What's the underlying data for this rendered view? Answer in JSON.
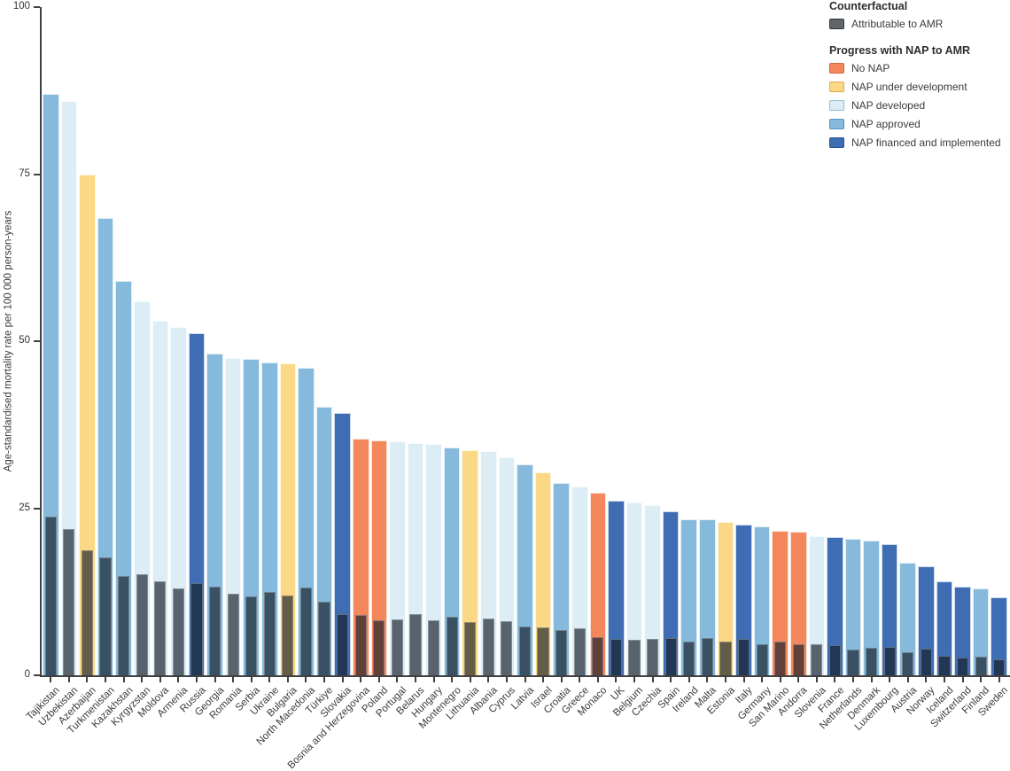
{
  "legend": {
    "counterfactual_title": "Counterfactual",
    "attributable_label": "Attributable to AMR",
    "nap_title": "Progress with NAP to AMR",
    "items": [
      {
        "key": "no_nap",
        "label": "No NAP"
      },
      {
        "key": "under_development",
        "label": "NAP under development"
      },
      {
        "key": "developed",
        "label": "NAP developed"
      },
      {
        "key": "approved",
        "label": "NAP approved"
      },
      {
        "key": "financed",
        "label": "NAP financed and implemented"
      }
    ]
  },
  "colors": {
    "no_nap": "#F4875C",
    "under_development": "#FBD885",
    "developed": "#DCEDF5",
    "approved": "#85BADC",
    "financed": "#3E6DB3",
    "attributable_overlay": "rgba(20,28,38,0.66)",
    "attributable_swatch": "#60656A",
    "swatch_borders": {
      "no_nap": "#D26744",
      "under_development": "#DCAB4E",
      "developed": "#8FBCD1",
      "approved": "#5A92BD",
      "financed": "#2A4F8C",
      "attributable": "#33383D"
    },
    "axis": "#404040",
    "text": "#3B3B3B"
  },
  "chart_data": {
    "type": "bar",
    "title": "",
    "xlabel": "",
    "ylabel": "Age-standardised mortality rate per 100 000 person-years",
    "ylim": [
      0,
      100
    ],
    "yticks": [
      0,
      25,
      50,
      75,
      100
    ],
    "grid": false,
    "legend_position": "top-right",
    "series_meaning": "counterfactual = full colored bar (colored by NAP progress); attributable = dark overlay bar (Attributable to AMR)",
    "countries": [
      {
        "name": "Tajikistan",
        "nap": "approved",
        "counterfactual": 87.0,
        "attributable": 23.7
      },
      {
        "name": "Uzbekistan",
        "nap": "developed",
        "counterfactual": 86.0,
        "attributable": 21.9
      },
      {
        "name": "Azerbaijan",
        "nap": "under_development",
        "counterfactual": 75.0,
        "attributable": 18.7
      },
      {
        "name": "Turkmenistan",
        "nap": "approved",
        "counterfactual": 68.5,
        "attributable": 17.6
      },
      {
        "name": "Kazakhstan",
        "nap": "approved",
        "counterfactual": 59.0,
        "attributable": 14.9
      },
      {
        "name": "Kyrgyzstan",
        "nap": "developed",
        "counterfactual": 56.0,
        "attributable": 15.1
      },
      {
        "name": "Moldova",
        "nap": "developed",
        "counterfactual": 53.0,
        "attributable": 14.1
      },
      {
        "name": "Armenia",
        "nap": "developed",
        "counterfactual": 52.1,
        "attributable": 13.0
      },
      {
        "name": "Russia",
        "nap": "financed",
        "counterfactual": 51.2,
        "attributable": 13.8
      },
      {
        "name": "Georgia",
        "nap": "approved",
        "counterfactual": 48.2,
        "attributable": 13.2
      },
      {
        "name": "Romania",
        "nap": "developed",
        "counterfactual": 47.5,
        "attributable": 12.2
      },
      {
        "name": "Serbia",
        "nap": "approved",
        "counterfactual": 47.3,
        "attributable": 11.8
      },
      {
        "name": "Ukraine",
        "nap": "approved",
        "counterfactual": 46.8,
        "attributable": 12.5
      },
      {
        "name": "Bulgaria",
        "nap": "under_development",
        "counterfactual": 46.7,
        "attributable": 12.0
      },
      {
        "name": "North Macedonia",
        "nap": "approved",
        "counterfactual": 46.0,
        "attributable": 13.1
      },
      {
        "name": "Türkiye",
        "nap": "approved",
        "counterfactual": 40.2,
        "attributable": 11.0
      },
      {
        "name": "Slovakia",
        "nap": "financed",
        "counterfactual": 39.2,
        "attributable": 9.2
      },
      {
        "name": "Bosnia and Herzegovina",
        "nap": "no_nap",
        "counterfactual": 35.4,
        "attributable": 9.0
      },
      {
        "name": "Poland",
        "nap": "no_nap",
        "counterfactual": 35.1,
        "attributable": 8.2
      },
      {
        "name": "Portugal",
        "nap": "developed",
        "counterfactual": 35.0,
        "attributable": 8.3
      },
      {
        "name": "Belarus",
        "nap": "developed",
        "counterfactual": 34.8,
        "attributable": 9.2
      },
      {
        "name": "Hungary",
        "nap": "developed",
        "counterfactual": 34.6,
        "attributable": 8.2
      },
      {
        "name": "Montenegro",
        "nap": "approved",
        "counterfactual": 34.1,
        "attributable": 8.8
      },
      {
        "name": "Lithuania",
        "nap": "under_development",
        "counterfactual": 33.7,
        "attributable": 7.9
      },
      {
        "name": "Albania",
        "nap": "developed",
        "counterfactual": 33.5,
        "attributable": 8.5
      },
      {
        "name": "Cyprus",
        "nap": "developed",
        "counterfactual": 32.6,
        "attributable": 8.1
      },
      {
        "name": "Latvia",
        "nap": "approved",
        "counterfactual": 31.6,
        "attributable": 7.3
      },
      {
        "name": "Israel",
        "nap": "under_development",
        "counterfactual": 30.4,
        "attributable": 7.2
      },
      {
        "name": "Croatia",
        "nap": "approved",
        "counterfactual": 28.8,
        "attributable": 6.8
      },
      {
        "name": "Greece",
        "nap": "developed",
        "counterfactual": 28.3,
        "attributable": 7.0
      },
      {
        "name": "Monaco",
        "nap": "no_nap",
        "counterfactual": 27.3,
        "attributable": 5.7
      },
      {
        "name": "UK",
        "nap": "financed",
        "counterfactual": 26.1,
        "attributable": 5.5
      },
      {
        "name": "Belgium",
        "nap": "developed",
        "counterfactual": 25.8,
        "attributable": 5.3
      },
      {
        "name": "Czechia",
        "nap": "developed",
        "counterfactual": 25.4,
        "attributable": 5.4
      },
      {
        "name": "Spain",
        "nap": "financed",
        "counterfactual": 24.5,
        "attributable": 5.6
      },
      {
        "name": "Ireland",
        "nap": "approved",
        "counterfactual": 23.4,
        "attributable": 5.0
      },
      {
        "name": "Malta",
        "nap": "approved",
        "counterfactual": 23.3,
        "attributable": 5.6
      },
      {
        "name": "Estonia",
        "nap": "under_development",
        "counterfactual": 23.0,
        "attributable": 5.0
      },
      {
        "name": "Italy",
        "nap": "financed",
        "counterfactual": 22.6,
        "attributable": 5.4
      },
      {
        "name": "Germany",
        "nap": "approved",
        "counterfactual": 22.3,
        "attributable": 4.6
      },
      {
        "name": "San Marino",
        "nap": "no_nap",
        "counterfactual": 21.6,
        "attributable": 5.0
      },
      {
        "name": "Andorra",
        "nap": "no_nap",
        "counterfactual": 21.5,
        "attributable": 4.7
      },
      {
        "name": "Slovenia",
        "nap": "developed",
        "counterfactual": 20.8,
        "attributable": 4.7
      },
      {
        "name": "France",
        "nap": "financed",
        "counterfactual": 20.7,
        "attributable": 4.5
      },
      {
        "name": "Netherlands",
        "nap": "approved",
        "counterfactual": 20.4,
        "attributable": 3.9
      },
      {
        "name": "Denmark",
        "nap": "approved",
        "counterfactual": 20.1,
        "attributable": 4.1
      },
      {
        "name": "Luxembourg",
        "nap": "financed",
        "counterfactual": 19.6,
        "attributable": 4.3
      },
      {
        "name": "Austria",
        "nap": "approved",
        "counterfactual": 16.8,
        "attributable": 3.4
      },
      {
        "name": "Norway",
        "nap": "financed",
        "counterfactual": 16.3,
        "attributable": 4.0
      },
      {
        "name": "Iceland",
        "nap": "financed",
        "counterfactual": 14.0,
        "attributable": 2.9
      },
      {
        "name": "Switzerland",
        "nap": "financed",
        "counterfactual": 13.2,
        "attributable": 2.7
      },
      {
        "name": "Finland",
        "nap": "approved",
        "counterfactual": 13.0,
        "attributable": 2.8
      },
      {
        "name": "Sweden",
        "nap": "financed",
        "counterfactual": 11.7,
        "attributable": 2.4
      }
    ]
  }
}
